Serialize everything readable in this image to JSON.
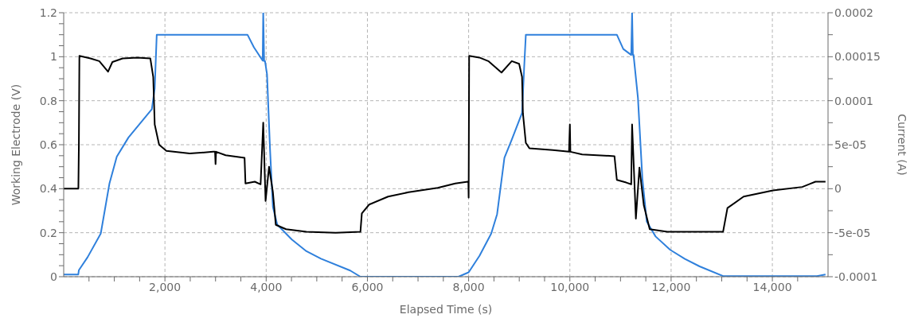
{
  "chart_data": {
    "type": "line",
    "xlabel": "Elapsed Time (s)",
    "ylabel": "Working Electrode (V)",
    "y2label": "Current (A)",
    "xlim": [
      0,
      15100
    ],
    "xticks": [
      {
        "value": 500,
        "label": null
      },
      {
        "value": 1000,
        "label": null
      },
      {
        "value": 1500,
        "label": null
      },
      {
        "value": 2000,
        "label": "2,000"
      },
      {
        "value": 2500,
        "label": null
      },
      {
        "value": 3000,
        "label": null
      },
      {
        "value": 3500,
        "label": null
      },
      {
        "value": 4000,
        "label": "4,000"
      },
      {
        "value": 4500,
        "label": null
      },
      {
        "value": 5000,
        "label": null
      },
      {
        "value": 5500,
        "label": null
      },
      {
        "value": 6000,
        "label": "6,000"
      },
      {
        "value": 6500,
        "label": null
      },
      {
        "value": 7000,
        "label": null
      },
      {
        "value": 7500,
        "label": null
      },
      {
        "value": 8000,
        "label": "8,000"
      },
      {
        "value": 8500,
        "label": null
      },
      {
        "value": 9000,
        "label": null
      },
      {
        "value": 9500,
        "label": null
      },
      {
        "value": 10000,
        "label": "10,000"
      },
      {
        "value": 10500,
        "label": null
      },
      {
        "value": 11000,
        "label": null
      },
      {
        "value": 11500,
        "label": null
      },
      {
        "value": 12000,
        "label": "12,000"
      },
      {
        "value": 12500,
        "label": null
      },
      {
        "value": 13000,
        "label": null
      },
      {
        "value": 13500,
        "label": null
      },
      {
        "value": 14000,
        "label": "14,000"
      },
      {
        "value": 14500,
        "label": null
      }
    ],
    "ylim": [
      0,
      1.2
    ],
    "yticks": [
      0,
      {
        "value": 0.05,
        "label": null
      },
      {
        "value": 0.1,
        "label": null
      },
      {
        "value": 0.15,
        "label": null
      },
      0.2,
      {
        "value": 0.25,
        "label": null
      },
      {
        "value": 0.3,
        "label": null
      },
      {
        "value": 0.35,
        "label": null
      },
      0.4,
      {
        "value": 0.45,
        "label": null
      },
      {
        "value": 0.5,
        "label": null
      },
      {
        "value": 0.55,
        "label": null
      },
      0.6,
      {
        "value": 0.65,
        "label": null
      },
      {
        "value": 0.7,
        "label": null
      },
      {
        "value": 0.75,
        "label": null
      },
      0.8,
      {
        "value": 0.85,
        "label": null
      },
      {
        "value": 0.9,
        "label": null
      },
      {
        "value": 0.95,
        "label": null
      },
      1,
      {
        "value": 1.05,
        "label": null
      },
      {
        "value": 1.1,
        "label": null
      },
      {
        "value": 1.15,
        "label": null
      },
      1.2
    ],
    "y2lim": [
      -0.0001,
      0.0002
    ],
    "y2ticks": [
      -0.0001,
      {
        "value": -7.5e-05,
        "label": null
      },
      {
        "value": -5e-05,
        "label": "-5e-05"
      },
      {
        "value": -2.5e-05,
        "label": null
      },
      0,
      {
        "value": 2.5e-05,
        "label": null
      },
      {
        "value": 5e-05,
        "label": "5e-05"
      },
      {
        "value": 7.5e-05,
        "label": null
      },
      0.0001,
      {
        "value": 0.000125,
        "label": null
      },
      0.00015,
      {
        "value": 0.000175,
        "label": null
      },
      0.0002
    ],
    "grid": true,
    "line_style": "solid",
    "series": [
      {
        "color": "#2f80dc",
        "x": [
          0,
          288,
          300,
          473,
          732,
          905,
          1049,
          1280,
          1741,
          1798,
          1838,
          3631,
          3758,
          3931,
          3942,
          3960,
          3977,
          4017,
          4075,
          4133,
          4219,
          4507,
          4795,
          5083,
          5660,
          5862,
          7800,
          8000,
          8214,
          8446,
          8562,
          8707,
          8852,
          9055,
          9096,
          9130,
          10928,
          11055,
          11212,
          11229,
          11245,
          11258,
          11345,
          11432,
          11519,
          11693,
          11983,
          12272,
          12562,
          13026,
          14881,
          15050
        ],
        "values": [
          0.01,
          0.01,
          0.03,
          0.089,
          0.196,
          0.425,
          0.546,
          0.633,
          0.761,
          0.855,
          1.1,
          1.1,
          1.043,
          0.982,
          1.2,
          0.98,
          0.98,
          0.92,
          0.586,
          0.317,
          0.237,
          0.169,
          0.116,
          0.082,
          0.028,
          0,
          0,
          0.02,
          0.095,
          0.196,
          0.284,
          0.541,
          0.623,
          0.744,
          0.947,
          1.1,
          1.1,
          1.035,
          1.008,
          1.2,
          1.008,
          1.008,
          0.812,
          0.447,
          0.25,
          0.183,
          0.122,
          0.081,
          0.047,
          0.003,
          0.003,
          0.01
        ]
      },
      {
        "color": "#000000",
        "axis": "y2",
        "x": [
          0,
          290,
          300,
          310,
          530,
          703,
          876,
          962,
          1164,
          1452,
          1712,
          1769,
          1798,
          1885,
          2029,
          2490,
          2951,
          2990,
          3000,
          3010,
          3199,
          3573,
          3591,
          3775,
          3890,
          3942,
          3988,
          4057,
          4133,
          4190,
          4392,
          4795,
          5372,
          5862,
          5890,
          6035,
          6409,
          6813,
          7389,
          7735,
          7983,
          7995,
          8000,
          8010,
          8214,
          8388,
          8649,
          8852,
          8997,
          9055,
          9072,
          9130,
          9200,
          9664,
          9983,
          10000,
          10010,
          10243,
          10881,
          10928,
          11113,
          11212,
          11229,
          11304,
          11374,
          11461,
          11577,
          11925,
          12272,
          13026,
          13113,
          13432,
          14011,
          14591,
          14852,
          15050
        ],
        "values": [
          0,
          0,
          5e-05,
          0.000151,
          0.000148,
          0.000145,
          0.000133,
          0.000144,
          0.000148,
          0.000149,
          0.000148,
          0.000127,
          7.3e-05,
          5e-05,
          4.3e-05,
          4e-05,
          4.2e-05,
          4.2e-05,
          2.8e-05,
          4.2e-05,
          3.8e-05,
          3.5e-05,
          6e-06,
          8e-06,
          5e-06,
          7.5e-05,
          -1.4e-05,
          2.5e-05,
          -4e-06,
          -4.1e-05,
          -4.6e-05,
          -4.9e-05,
          -5e-05,
          -4.9e-05,
          -2.8e-05,
          -1.8e-05,
          -9e-06,
          -4e-06,
          1e-06,
          6e-06,
          8e-06,
          8e-06,
          -1e-05,
          0.000151,
          0.000149,
          0.000145,
          0.000132,
          0.000145,
          0.000142,
          0.000127,
          8.6e-05,
          5.2e-05,
          4.6e-05,
          4.4e-05,
          4.2e-05,
          7.3e-05,
          4.2e-05,
          3.9e-05,
          3.7e-05,
          1e-05,
          7e-06,
          5e-06,
          7.3e-05,
          -3.4e-05,
          2.4e-05,
          -1.9e-05,
          -4.6e-05,
          -4.9e-05,
          -4.9e-05,
          -4.9e-05,
          -2.2e-05,
          -9e-06,
          -2e-06,
          2e-06,
          8e-06,
          8e-06
        ]
      }
    ]
  }
}
